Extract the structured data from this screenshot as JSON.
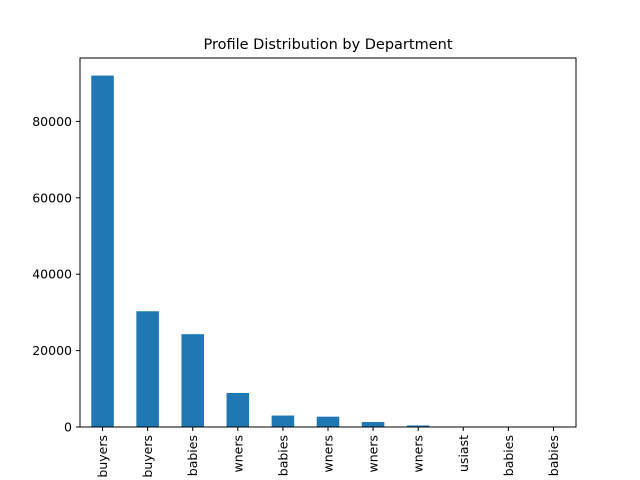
{
  "chart_data": {
    "type": "bar",
    "title": "Profile Distribution by Department",
    "xlabel": "",
    "ylabel": "",
    "categories": [
      "buyers",
      "buyers",
      "babies",
      "wners",
      "babies",
      "wners",
      "wners",
      "wners",
      "usiast",
      "babies",
      "babies"
    ],
    "values": [
      92000,
      30300,
      24300,
      8900,
      3000,
      2700,
      1300,
      400,
      100,
      80,
      60
    ],
    "ylim": [
      0,
      96600
    ],
    "yticks": [
      0,
      20000,
      40000,
      60000,
      80000
    ],
    "ytick_labels": [
      "0",
      "20000",
      "40000",
      "60000",
      "80000"
    ],
    "grid": false,
    "legend": "none",
    "bar_color": "#1f77b4"
  }
}
